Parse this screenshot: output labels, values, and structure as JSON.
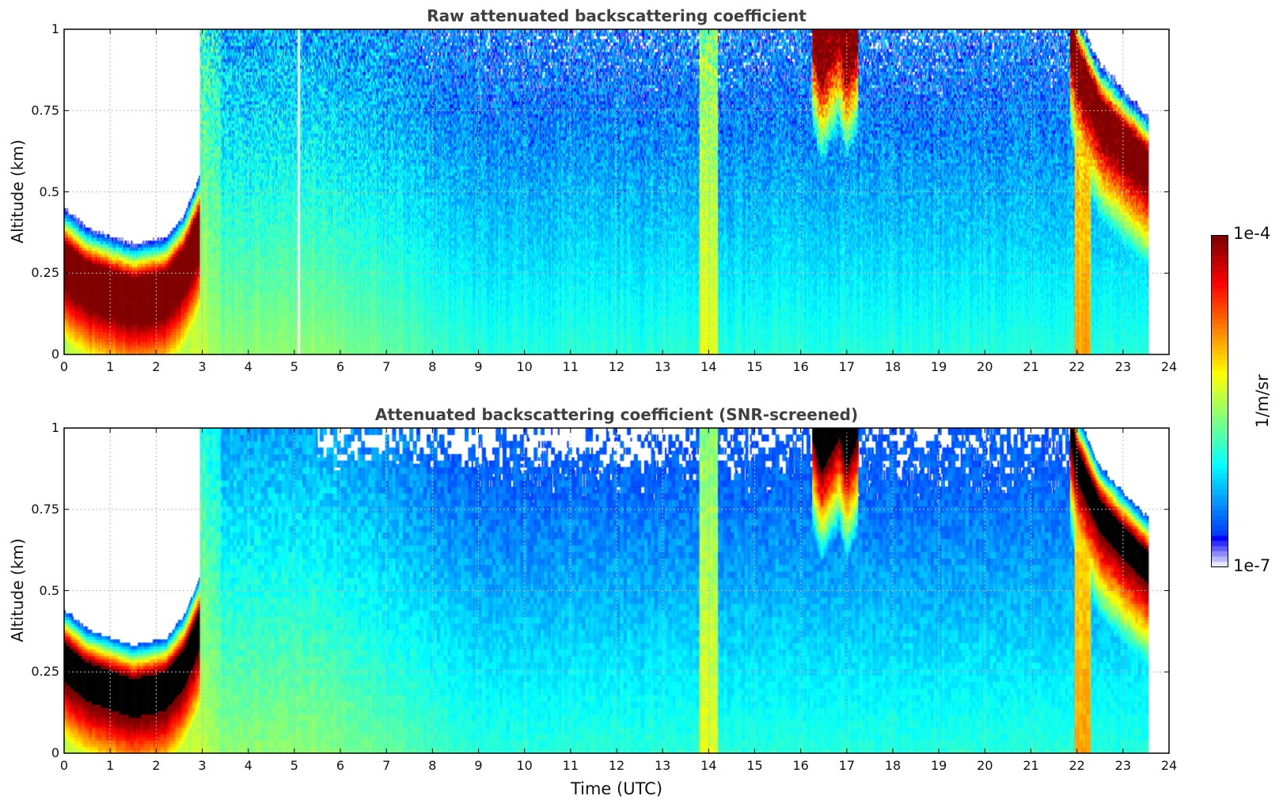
{
  "chart_data": [
    {
      "type": "heatmap",
      "id": "raw",
      "title": "Raw attenuated backscattering coefficient",
      "xlabel": "",
      "ylabel": "Altitude (km)",
      "xlim": [
        0,
        24
      ],
      "ylim": [
        0,
        1
      ],
      "xticks": [
        "0",
        "1",
        "2",
        "3",
        "4",
        "5",
        "6",
        "7",
        "8",
        "9",
        "10",
        "11",
        "12",
        "13",
        "14",
        "15",
        "16",
        "17",
        "18",
        "19",
        "20",
        "21",
        "22",
        "23",
        "24"
      ],
      "yticks": [
        "0",
        "0.25",
        "0.5",
        "0.75",
        "1"
      ],
      "grid": true,
      "screened": false
    },
    {
      "type": "heatmap",
      "id": "screened",
      "title": "Attenuated backscattering coefficient (SNR-screened)",
      "xlabel": "Time (UTC)",
      "ylabel": "Altitude (km)",
      "xlim": [
        0,
        24
      ],
      "ylim": [
        0,
        1
      ],
      "xticks": [
        "0",
        "1",
        "2",
        "3",
        "4",
        "5",
        "6",
        "7",
        "8",
        "9",
        "10",
        "11",
        "12",
        "13",
        "14",
        "15",
        "16",
        "17",
        "18",
        "19",
        "20",
        "21",
        "22",
        "23",
        "24"
      ],
      "yticks": [
        "0",
        "0.25",
        "0.5",
        "0.75",
        "1"
      ],
      "grid": true,
      "screened": true
    }
  ],
  "colorbar": {
    "label": "1/m/sr",
    "max_label": "1e-4",
    "min_label": "1e-7",
    "log10_range": [
      -7,
      -4
    ],
    "colormap": "jet",
    "saturated_color_screened": "#000000"
  },
  "field": {
    "data_end_hour": 23.55,
    "background": {
      "surface_log10_early": -5.62,
      "surface_log10_late": -5.95,
      "transition_hours": [
        5.5,
        9
      ],
      "log10_drop_per_km": 0.75
    },
    "aerosol_layer": {
      "t": [
        0,
        3.4
      ],
      "log10": -5.45
    },
    "features": [
      {
        "type": "cloud",
        "t": [
          0,
          2.95
        ],
        "base_km_at": [
          [
            0,
            0.22
          ],
          [
            0.5,
            0.16
          ],
          [
            1.5,
            0.11
          ],
          [
            2.2,
            0.13
          ],
          [
            2.6,
            0.2
          ],
          [
            2.95,
            0.32
          ]
        ],
        "thickness_km": 0.12,
        "log10_peak": -3.85
      },
      {
        "type": "cloud",
        "t": [
          16.25,
          17.25
        ],
        "base_km_at": [
          [
            16.25,
            0.97
          ],
          [
            16.45,
            0.86
          ],
          [
            16.7,
            0.93
          ],
          [
            16.85,
            0.97
          ],
          [
            17.0,
            0.87
          ],
          [
            17.25,
            0.97
          ]
        ],
        "thickness_km": 0.4,
        "log10_peak": -3.85
      },
      {
        "type": "cloud",
        "t": [
          21.85,
          23.55
        ],
        "base_km_at": [
          [
            21.85,
            0.97
          ],
          [
            22.0,
            0.84
          ],
          [
            22.5,
            0.68
          ],
          [
            23.0,
            0.6
          ],
          [
            23.55,
            0.52
          ]
        ],
        "thickness_km": 0.1,
        "log10_peak": -3.85
      },
      {
        "type": "column",
        "t": [
          21.95,
          22.3
        ],
        "log10": -4.95
      },
      {
        "type": "column",
        "t": [
          13.8,
          14.2
        ],
        "log10": -5.35
      },
      {
        "type": "gap",
        "t": [
          5.08,
          5.13
        ]
      }
    ],
    "low_snr_region": {
      "t": [
        5.5,
        13.6
      ],
      "z_km_above": 0.87
    }
  }
}
